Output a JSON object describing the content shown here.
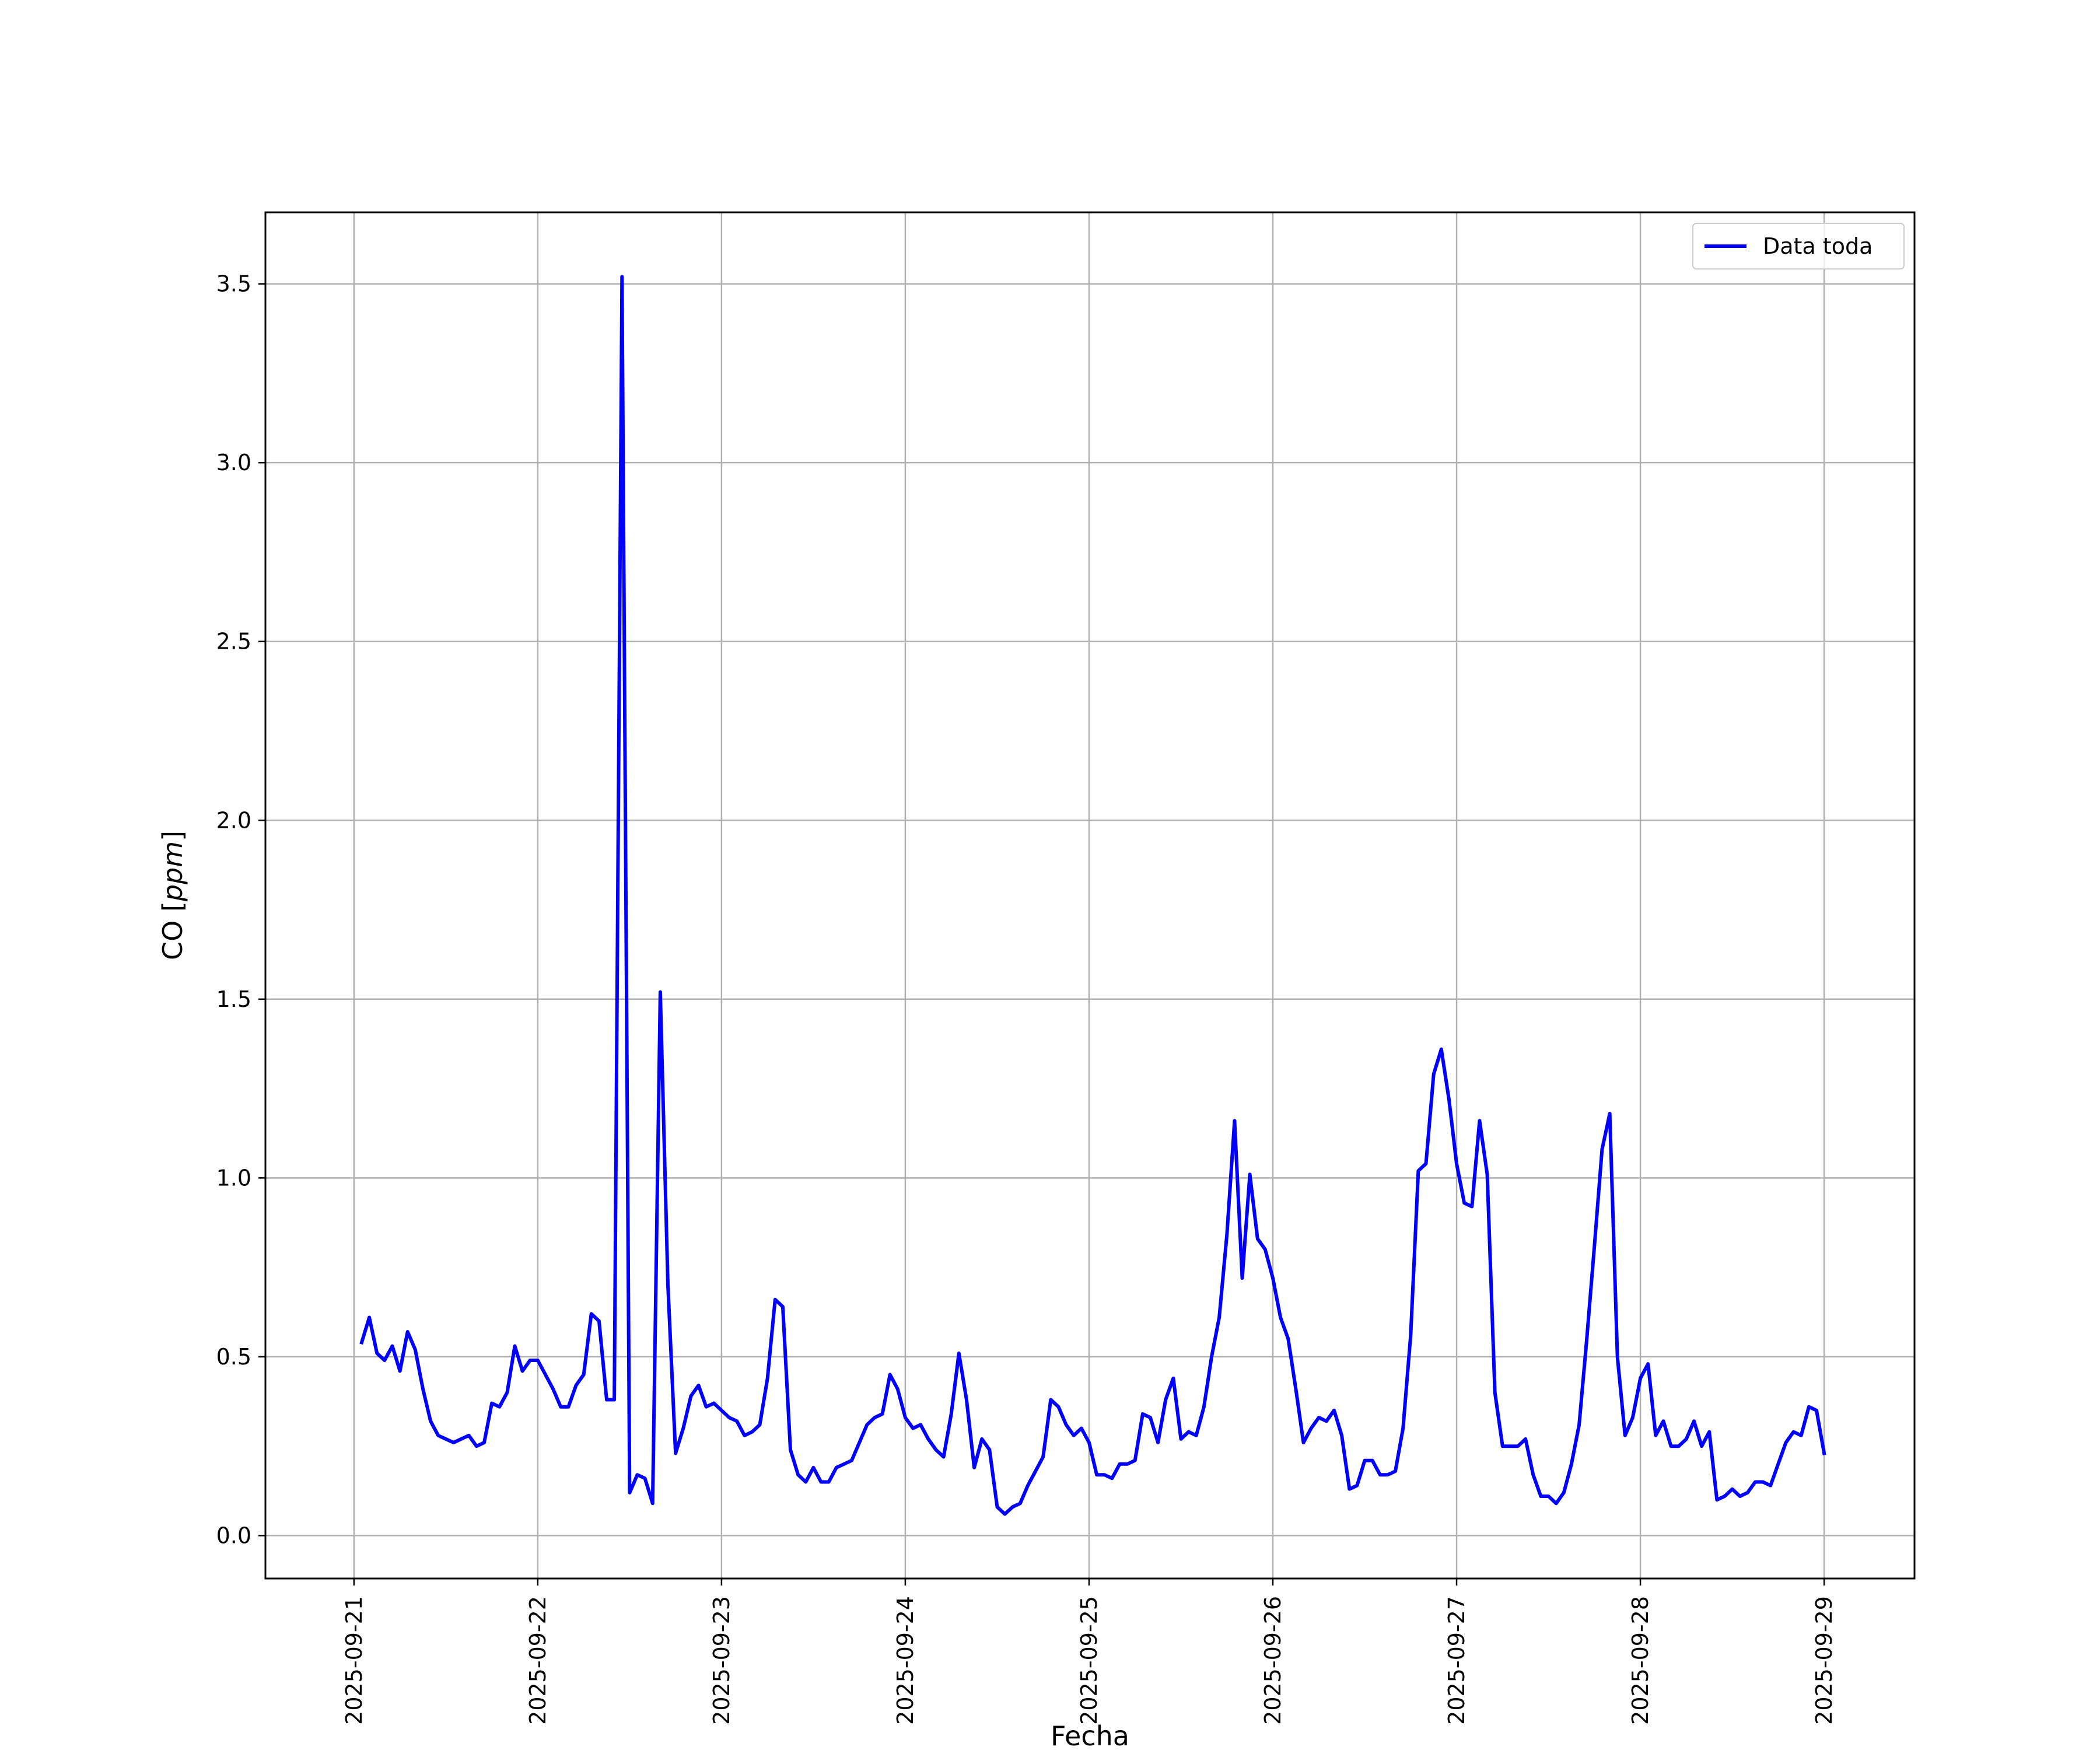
{
  "chart_data": {
    "type": "line",
    "title": "",
    "xlabel": "Fecha",
    "ylabel": "CO [",
    "ylabel_unit": "ppm",
    "ylabel_close": "]",
    "x_axis_type": "date",
    "x_ticks": [
      "2025-09-21",
      "2025-09-22",
      "2025-09-23",
      "2025-09-24",
      "2025-09-25",
      "2025-09-26",
      "2025-09-27",
      "2025-09-28",
      "2025-09-29"
    ],
    "y_ticks": [
      "0.0",
      "0.5",
      "1.0",
      "1.5",
      "2.0",
      "2.5",
      "3.0",
      "3.5"
    ],
    "xlim": [
      "2025-09-20T12:26",
      "2025-09-29T11:48"
    ],
    "ylim": [
      -0.12,
      3.7
    ],
    "grid": true,
    "legend_position": "upper right",
    "series": [
      {
        "name": "Data toda",
        "color": "#0000ff",
        "x": [
          "2025-09-21T01:00",
          "2025-09-21T02:00",
          "2025-09-21T03:00",
          "2025-09-21T04:00",
          "2025-09-21T05:00",
          "2025-09-21T06:00",
          "2025-09-21T07:00",
          "2025-09-21T08:00",
          "2025-09-21T09:00",
          "2025-09-21T10:00",
          "2025-09-21T11:00",
          "2025-09-21T12:00",
          "2025-09-21T13:00",
          "2025-09-21T14:00",
          "2025-09-21T15:00",
          "2025-09-21T16:00",
          "2025-09-21T17:00",
          "2025-09-21T18:00",
          "2025-09-21T19:00",
          "2025-09-21T20:00",
          "2025-09-21T21:00",
          "2025-09-21T22:00",
          "2025-09-21T23:00",
          "2025-09-22T00:00",
          "2025-09-22T01:00",
          "2025-09-22T02:00",
          "2025-09-22T03:00",
          "2025-09-22T04:00",
          "2025-09-22T05:00",
          "2025-09-22T06:00",
          "2025-09-22T07:00",
          "2025-09-22T08:00",
          "2025-09-22T09:00",
          "2025-09-22T10:00",
          "2025-09-22T11:00",
          "2025-09-22T12:00",
          "2025-09-22T13:00",
          "2025-09-22T14:00",
          "2025-09-22T15:00",
          "2025-09-22T16:00",
          "2025-09-22T17:00",
          "2025-09-22T18:00",
          "2025-09-22T19:00",
          "2025-09-22T20:00",
          "2025-09-22T21:00",
          "2025-09-22T22:00",
          "2025-09-22T23:00",
          "2025-09-23T00:00",
          "2025-09-23T01:00",
          "2025-09-23T02:00",
          "2025-09-23T03:00",
          "2025-09-23T04:00",
          "2025-09-23T05:00",
          "2025-09-23T06:00",
          "2025-09-23T07:00",
          "2025-09-23T08:00",
          "2025-09-23T09:00",
          "2025-09-23T10:00",
          "2025-09-23T11:00",
          "2025-09-23T12:00",
          "2025-09-23T13:00",
          "2025-09-23T14:00",
          "2025-09-23T15:00",
          "2025-09-23T16:00",
          "2025-09-23T17:00",
          "2025-09-23T18:00",
          "2025-09-23T19:00",
          "2025-09-23T20:00",
          "2025-09-23T21:00",
          "2025-09-23T22:00",
          "2025-09-23T23:00",
          "2025-09-24T00:00",
          "2025-09-24T01:00",
          "2025-09-24T02:00",
          "2025-09-24T03:00",
          "2025-09-24T04:00",
          "2025-09-24T05:00",
          "2025-09-24T06:00",
          "2025-09-24T07:00",
          "2025-09-24T08:00",
          "2025-09-24T09:00",
          "2025-09-24T10:00",
          "2025-09-24T11:00",
          "2025-09-24T12:00",
          "2025-09-24T13:00",
          "2025-09-24T14:00",
          "2025-09-24T15:00",
          "2025-09-24T16:00",
          "2025-09-24T17:00",
          "2025-09-24T18:00",
          "2025-09-24T19:00",
          "2025-09-24T20:00",
          "2025-09-24T21:00",
          "2025-09-24T22:00",
          "2025-09-24T23:00",
          "2025-09-25T00:00",
          "2025-09-25T01:00",
          "2025-09-25T02:00",
          "2025-09-25T03:00",
          "2025-09-25T04:00",
          "2025-09-25T05:00",
          "2025-09-25T06:00",
          "2025-09-25T07:00",
          "2025-09-25T08:00",
          "2025-09-25T09:00",
          "2025-09-25T10:00",
          "2025-09-25T11:00",
          "2025-09-25T12:00",
          "2025-09-25T13:00",
          "2025-09-25T14:00",
          "2025-09-25T15:00",
          "2025-09-25T16:00",
          "2025-09-25T17:00",
          "2025-09-25T18:00",
          "2025-09-25T19:00",
          "2025-09-25T20:00",
          "2025-09-25T21:00",
          "2025-09-25T22:00",
          "2025-09-25T23:00",
          "2025-09-26T00:00",
          "2025-09-26T01:00",
          "2025-09-26T02:00",
          "2025-09-26T03:00",
          "2025-09-26T04:00",
          "2025-09-26T05:00",
          "2025-09-26T06:00",
          "2025-09-26T07:00",
          "2025-09-26T08:00",
          "2025-09-26T09:00",
          "2025-09-26T10:00",
          "2025-09-26T11:00",
          "2025-09-26T12:00",
          "2025-09-26T13:00",
          "2025-09-26T14:00",
          "2025-09-26T15:00",
          "2025-09-26T16:00",
          "2025-09-26T17:00",
          "2025-09-26T18:00",
          "2025-09-26T19:00",
          "2025-09-26T20:00",
          "2025-09-26T21:00",
          "2025-09-26T22:00",
          "2025-09-26T23:00",
          "2025-09-27T00:00",
          "2025-09-27T01:00",
          "2025-09-27T02:00",
          "2025-09-27T03:00",
          "2025-09-27T04:00",
          "2025-09-27T05:00",
          "2025-09-27T06:00",
          "2025-09-27T07:00",
          "2025-09-27T08:00",
          "2025-09-27T09:00",
          "2025-09-27T10:00",
          "2025-09-27T11:00",
          "2025-09-27T12:00",
          "2025-09-27T13:00",
          "2025-09-27T14:00",
          "2025-09-27T15:00",
          "2025-09-27T16:00",
          "2025-09-27T17:00",
          "2025-09-27T18:00",
          "2025-09-27T19:00",
          "2025-09-27T20:00",
          "2025-09-27T21:00",
          "2025-09-27T22:00",
          "2025-09-27T23:00",
          "2025-09-28T00:00",
          "2025-09-28T01:00",
          "2025-09-28T02:00",
          "2025-09-28T03:00",
          "2025-09-28T04:00",
          "2025-09-28T05:00",
          "2025-09-28T06:00",
          "2025-09-28T07:00",
          "2025-09-28T08:00",
          "2025-09-28T09:00",
          "2025-09-28T10:00",
          "2025-09-28T11:00",
          "2025-09-28T12:00",
          "2025-09-28T13:00",
          "2025-09-28T14:00",
          "2025-09-28T15:00",
          "2025-09-28T16:00",
          "2025-09-28T17:00",
          "2025-09-28T18:00",
          "2025-09-28T19:00",
          "2025-09-28T20:00",
          "2025-09-28T21:00",
          "2025-09-28T22:00",
          "2025-09-28T23:00",
          "2025-09-29T00:00"
        ],
        "values": [
          0.54,
          0.61,
          0.51,
          0.49,
          0.53,
          0.46,
          0.57,
          0.52,
          0.41,
          0.32,
          0.28,
          0.27,
          0.26,
          0.27,
          0.28,
          0.25,
          0.26,
          0.37,
          0.36,
          0.4,
          0.53,
          0.46,
          0.49,
          0.49,
          0.45,
          0.41,
          0.36,
          0.36,
          0.42,
          0.45,
          0.62,
          0.6,
          0.38,
          0.38,
          3.52,
          0.12,
          0.17,
          0.16,
          0.09,
          1.52,
          0.7,
          0.23,
          0.3,
          0.39,
          0.42,
          0.36,
          0.37,
          0.35,
          0.33,
          0.32,
          0.28,
          0.29,
          0.31,
          0.44,
          0.66,
          0.64,
          0.24,
          0.17,
          0.15,
          0.19,
          0.15,
          0.15,
          0.19,
          0.2,
          0.21,
          0.26,
          0.31,
          0.33,
          0.34,
          0.45,
          0.41,
          0.33,
          0.3,
          0.31,
          0.27,
          0.24,
          0.22,
          0.34,
          0.51,
          0.38,
          0.19,
          0.27,
          0.24,
          0.08,
          0.06,
          0.08,
          0.09,
          0.14,
          0.18,
          0.22,
          0.38,
          0.36,
          0.31,
          0.28,
          0.3,
          0.26,
          0.17,
          0.17,
          0.16,
          0.2,
          0.2,
          0.21,
          0.34,
          0.33,
          0.26,
          0.38,
          0.44,
          0.27,
          0.29,
          0.28,
          0.36,
          0.5,
          0.61,
          0.84,
          1.16,
          0.72,
          1.01,
          0.83,
          0.8,
          0.72,
          0.61,
          0.55,
          0.41,
          0.26,
          0.3,
          0.33,
          0.32,
          0.35,
          0.28,
          0.13,
          0.14,
          0.21,
          0.21,
          0.17,
          0.17,
          0.18,
          0.3,
          0.56,
          1.02,
          1.04,
          1.29,
          1.36,
          1.22,
          1.04,
          0.93,
          0.92,
          1.16,
          1.01,
          0.4,
          0.25,
          0.25,
          0.25,
          0.27,
          0.17,
          0.11,
          0.11,
          0.09,
          0.12,
          0.2,
          0.31,
          0.55,
          0.81,
          1.08,
          1.18,
          0.5,
          0.28,
          0.33,
          0.44,
          0.48,
          0.28,
          0.32,
          0.25,
          0.25,
          0.27,
          0.32,
          0.25,
          0.29,
          0.1,
          0.11,
          0.13,
          0.11,
          0.12,
          0.15,
          0.15,
          0.14,
          0.2,
          0.26,
          0.29,
          0.28,
          0.36,
          0.35,
          0.23
        ]
      }
    ]
  }
}
